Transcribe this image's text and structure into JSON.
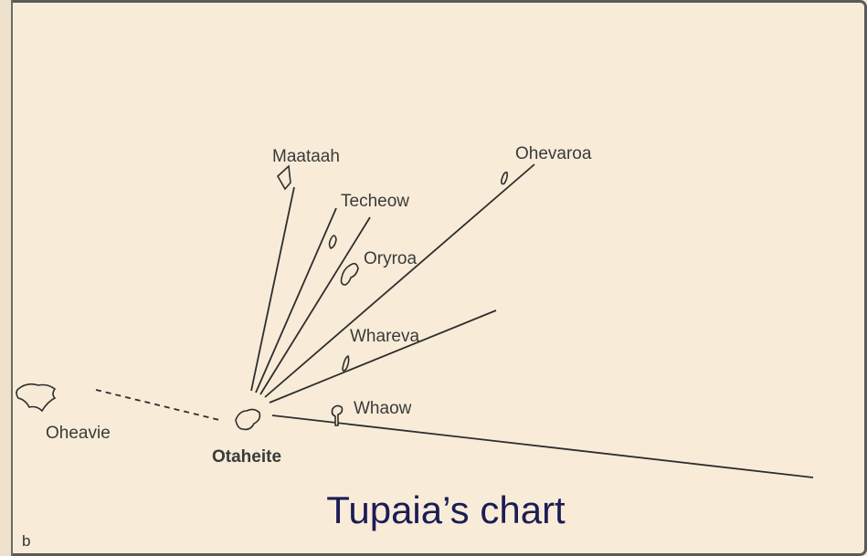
{
  "title": "Tupaia’s chart",
  "panel_label": "b",
  "origin": {
    "label": "Otaheite"
  },
  "nodes": [
    {
      "label": "Maataah"
    },
    {
      "label": "Techeow"
    },
    {
      "label": "Ohevaroa"
    },
    {
      "label": "Oryroa"
    },
    {
      "label": "Whareva"
    },
    {
      "label": "Whaow"
    },
    {
      "label": "Oheavie"
    }
  ]
}
